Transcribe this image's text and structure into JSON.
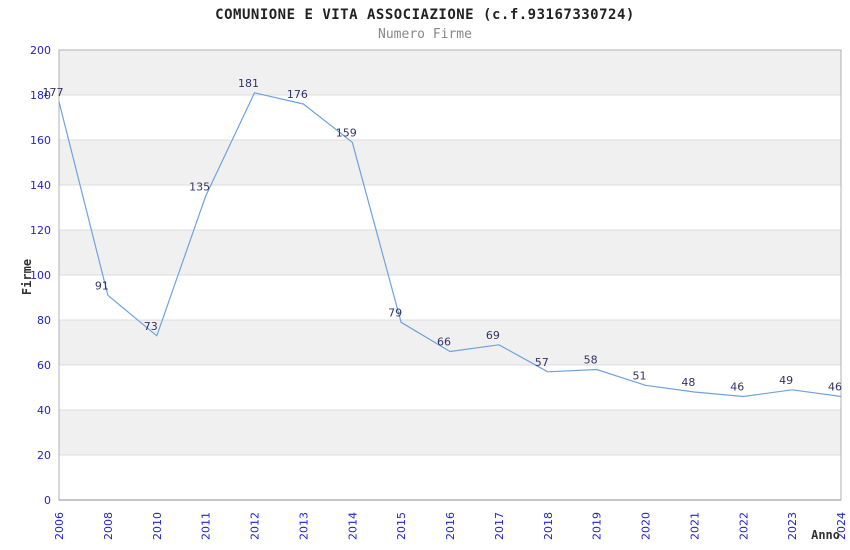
{
  "page": {
    "title": "COMUNIONE E VITA ASSOCIAZIONE (c.f.93167330724)",
    "subtitle": "Numero Firme"
  },
  "chart_data": {
    "type": "line",
    "title": "COMUNIONE E VITA ASSOCIAZIONE (c.f.93167330724)",
    "subtitle": "Numero Firme",
    "xlabel": "Anno",
    "ylabel": "Firme",
    "categories": [
      "2006",
      "2008",
      "2010",
      "2011",
      "2012",
      "2013",
      "2014",
      "2015",
      "2016",
      "2017",
      "2018",
      "2019",
      "2020",
      "2021",
      "2022",
      "2023",
      "2024"
    ],
    "values": [
      177,
      91,
      73,
      135,
      181,
      176,
      159,
      79,
      66,
      69,
      57,
      58,
      51,
      48,
      46,
      49,
      46
    ],
    "ylim": [
      0,
      200
    ],
    "ytick_step": 20,
    "grid": true,
    "legend": "none",
    "colors": {
      "line": "#6fa3dc",
      "band_gray": "#f0f0f0",
      "band_white": "#ffffff",
      "gridline": "#dcdcdc",
      "plot_border": "#b0b0b0",
      "axis_line": "#8c8c8c",
      "tick_label": "#2323cf",
      "value_label": "#333366",
      "title": "#222222",
      "subtitle": "#888888",
      "axis_title": "#333333"
    }
  }
}
